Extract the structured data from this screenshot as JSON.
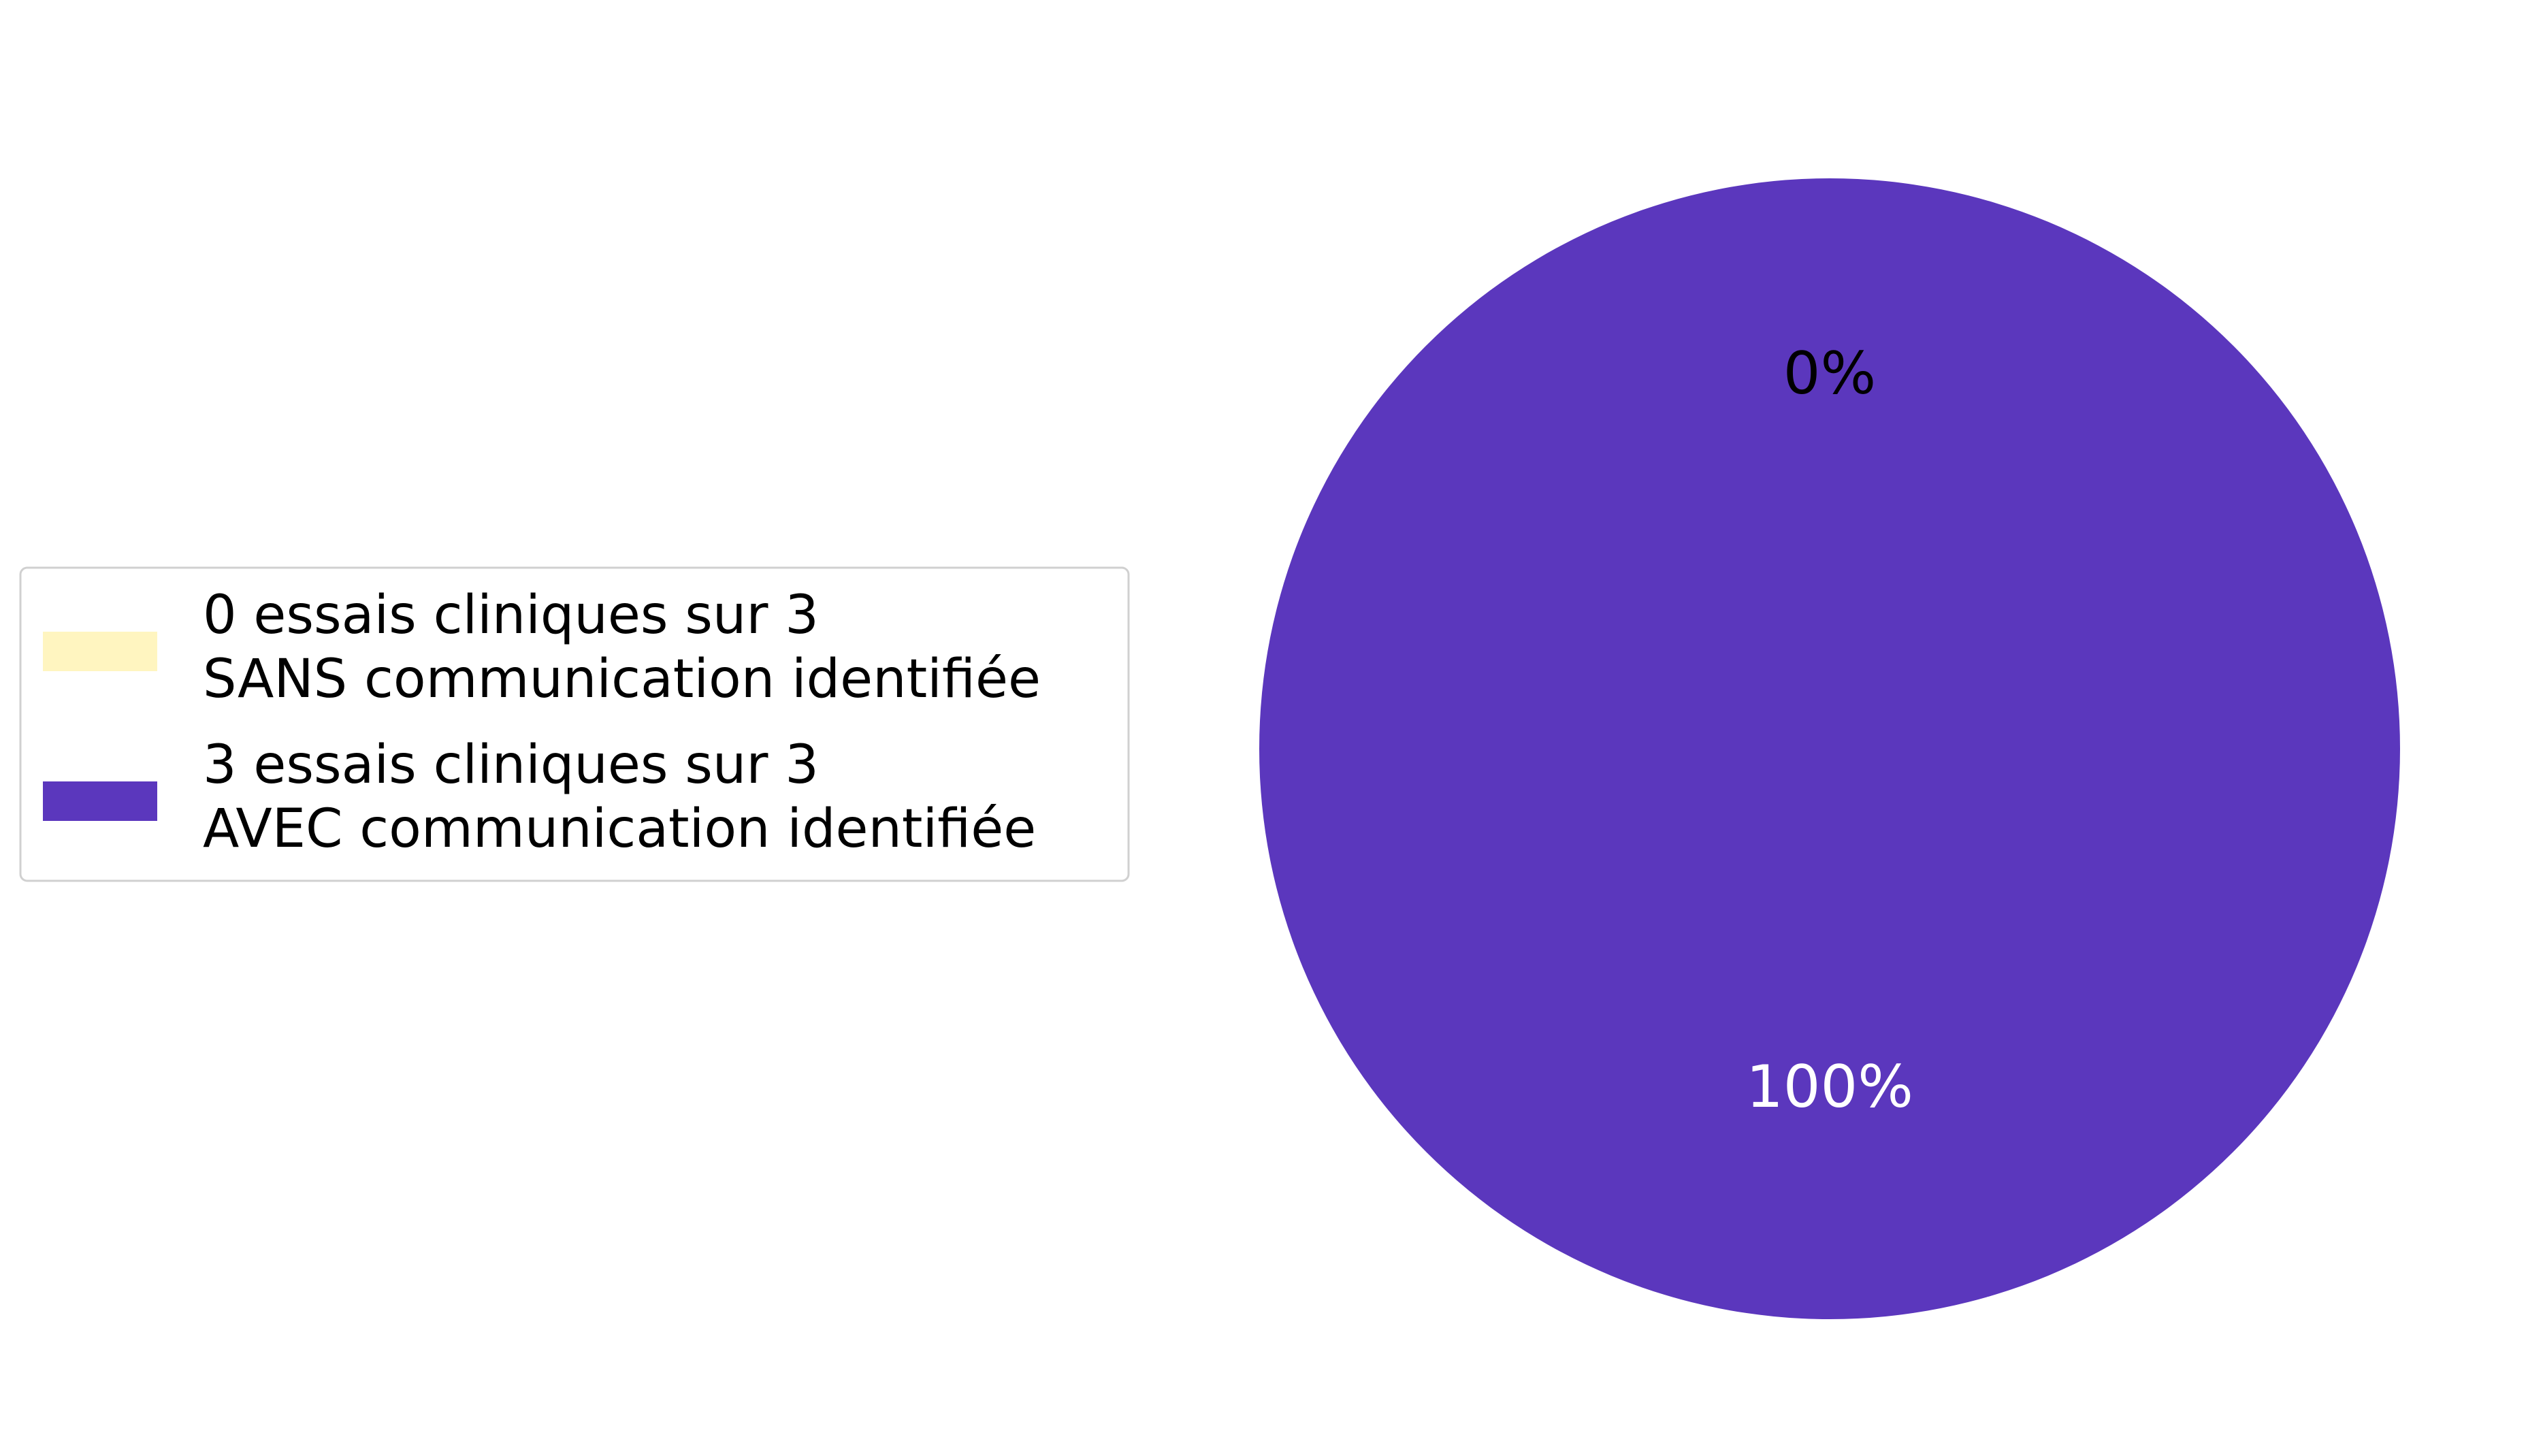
{
  "chart_data": {
    "type": "pie",
    "slices": [
      {
        "label_line1": "0 essais cliniques sur 3",
        "label_line2": "SANS communication identifiée",
        "value": 0,
        "pct_label": "0%",
        "color": "#fff5c0",
        "label_color": "#000000"
      },
      {
        "label_line1": "3 essais cliniques sur 3",
        "label_line2": "AVEC communication identifiée",
        "value": 3,
        "pct_label": "100%",
        "color": "#5b37bd",
        "label_color": "#ffffff"
      }
    ],
    "legend_position": "left"
  }
}
